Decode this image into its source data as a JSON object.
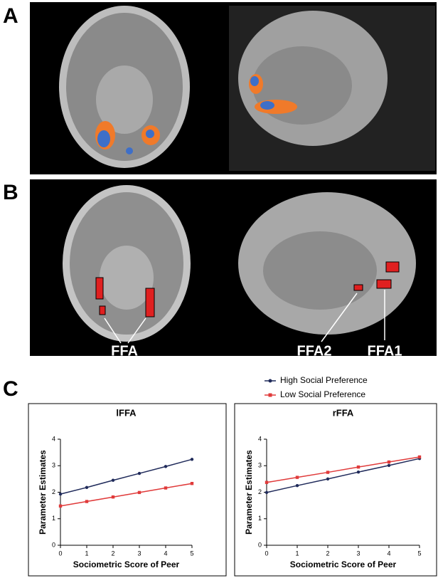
{
  "figure": {
    "panel_labels": [
      "A",
      "B",
      "C"
    ],
    "annotations": [
      "FFA",
      "FFA2",
      "FFA1"
    ]
  },
  "chart_data": [
    {
      "type": "line",
      "title": "lFFA",
      "x_label": "Sociometric Score of Peer",
      "y_label": "Parameter Estimates",
      "x": [
        0,
        1,
        2,
        3,
        4,
        5
      ],
      "series": [
        {
          "name": "High Social Preference",
          "color": "#1f2a5a",
          "values": [
            1.93,
            2.18,
            2.45,
            2.71,
            2.97,
            3.24
          ]
        },
        {
          "name": "Low Social Preference",
          "color": "#e03a3a",
          "values": [
            1.48,
            1.65,
            1.82,
            1.99,
            2.16,
            2.33
          ]
        }
      ],
      "xlim": [
        0,
        5
      ],
      "xticks": [
        0,
        1,
        2,
        3,
        4,
        5
      ],
      "ylim": [
        0,
        4
      ],
      "yticks": [
        0,
        1,
        2,
        3,
        4
      ]
    },
    {
      "type": "line",
      "title": "rFFA",
      "x_label": "Sociometric Score of Peer",
      "y_label": "Parameter Estimates",
      "x": [
        0,
        1,
        2,
        3,
        4,
        5
      ],
      "series": [
        {
          "color": "#1f2a5a",
          "values": [
            1.99,
            2.25,
            2.5,
            2.76,
            3.01,
            3.27
          ]
        },
        {
          "color": "#e03a3a",
          "values": [
            2.37,
            2.56,
            2.75,
            2.95,
            3.14,
            3.33
          ]
        }
      ],
      "xlim": [
        0,
        5
      ],
      "xticks": [
        0,
        1,
        2,
        3,
        4,
        5
      ],
      "ylim": [
        0,
        4
      ],
      "yticks": [
        0,
        1,
        2,
        3,
        4
      ]
    }
  ]
}
